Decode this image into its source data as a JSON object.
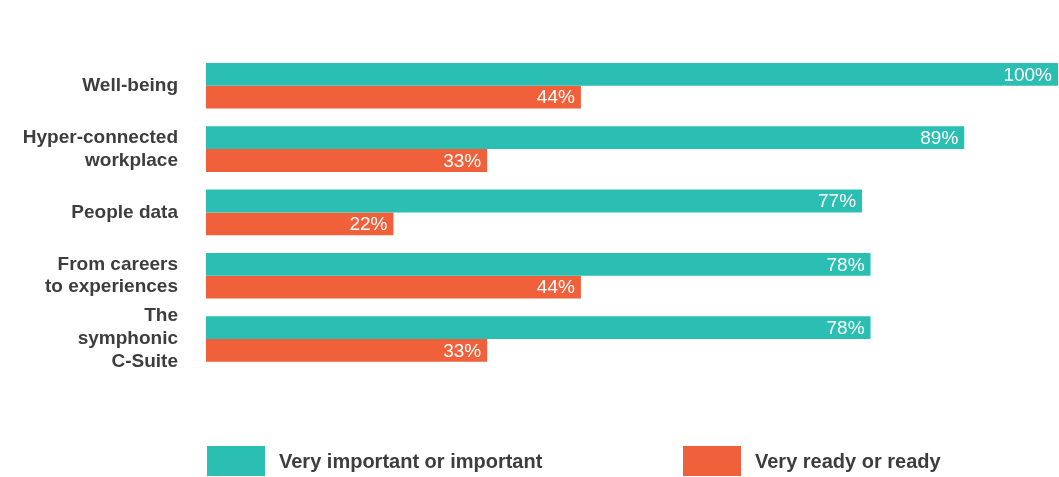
{
  "chart_data": {
    "type": "bar",
    "orientation": "horizontal",
    "categories": [
      "Well-being",
      "Hyper-connected workplace",
      "People data",
      "From careers to experiences",
      "The symphonic C-Suite"
    ],
    "series": [
      {
        "name": "Very important or important",
        "color": "#2bbfb3",
        "values": [
          100,
          89,
          77,
          78,
          78
        ],
        "value_labels": [
          "100%",
          "89%",
          "77%",
          "78%",
          "78%"
        ]
      },
      {
        "name": "Very ready or ready",
        "color": "#f0603a",
        "values": [
          44,
          33,
          22,
          44,
          33
        ],
        "value_labels": [
          "44%",
          "33%",
          "22%",
          "44%",
          "33%"
        ]
      }
    ],
    "legend": "bottom",
    "grid": false
  }
}
